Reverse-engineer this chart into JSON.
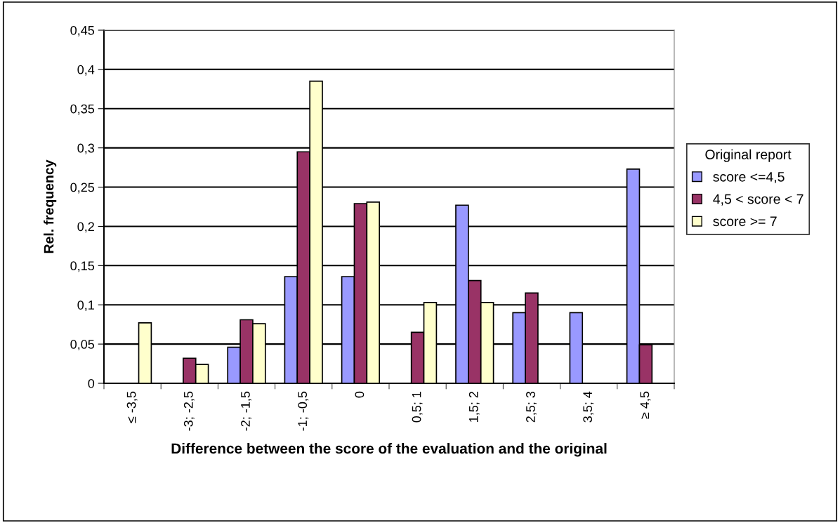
{
  "chart_data": {
    "type": "bar",
    "xlabel": "Difference between the score of the evaluation and the original",
    "ylabel": "Rel. frequency",
    "legend_title": "Original report",
    "legend": "right",
    "categories": [
      "≤ -3,5",
      "-3; -2,5",
      "-2; -1,5",
      "-1; -0,5",
      "0",
      "0,5; 1",
      "1,5; 2",
      "2,5; 3",
      "3,5; 4",
      "≥ 4,5"
    ],
    "series": [
      {
        "name": "score <=4,5",
        "color": "#9999ff",
        "values": [
          null,
          null,
          0.046,
          0.136,
          0.136,
          null,
          0.227,
          0.09,
          0.09,
          0.273
        ]
      },
      {
        "name": "4,5 < score < 7",
        "color": "#993366",
        "values": [
          null,
          0.032,
          0.081,
          0.295,
          0.229,
          0.065,
          0.131,
          0.115,
          null,
          0.049
        ]
      },
      {
        "name": "score >= 7",
        "color": "#ffffcc",
        "values": [
          0.077,
          0.024,
          0.076,
          0.385,
          0.231,
          0.103,
          0.103,
          null,
          null,
          null
        ]
      }
    ],
    "ylim": [
      0,
      0.45
    ],
    "yticks": [
      0,
      {
        "value": 0.05,
        "label": "0,05"
      },
      {
        "value": 0.1,
        "label": "0,1"
      },
      {
        "value": 0.15,
        "label": "0,15"
      },
      {
        "value": 0.2,
        "label": "0,2"
      },
      {
        "value": 0.25,
        "label": "0,25"
      },
      {
        "value": 0.3,
        "label": "0,3"
      },
      {
        "value": 0.35,
        "label": "0,35"
      },
      {
        "value": 0.4,
        "label": "0,4"
      },
      {
        "value": 0.45,
        "label": "0,45"
      }
    ],
    "grid": "y"
  }
}
